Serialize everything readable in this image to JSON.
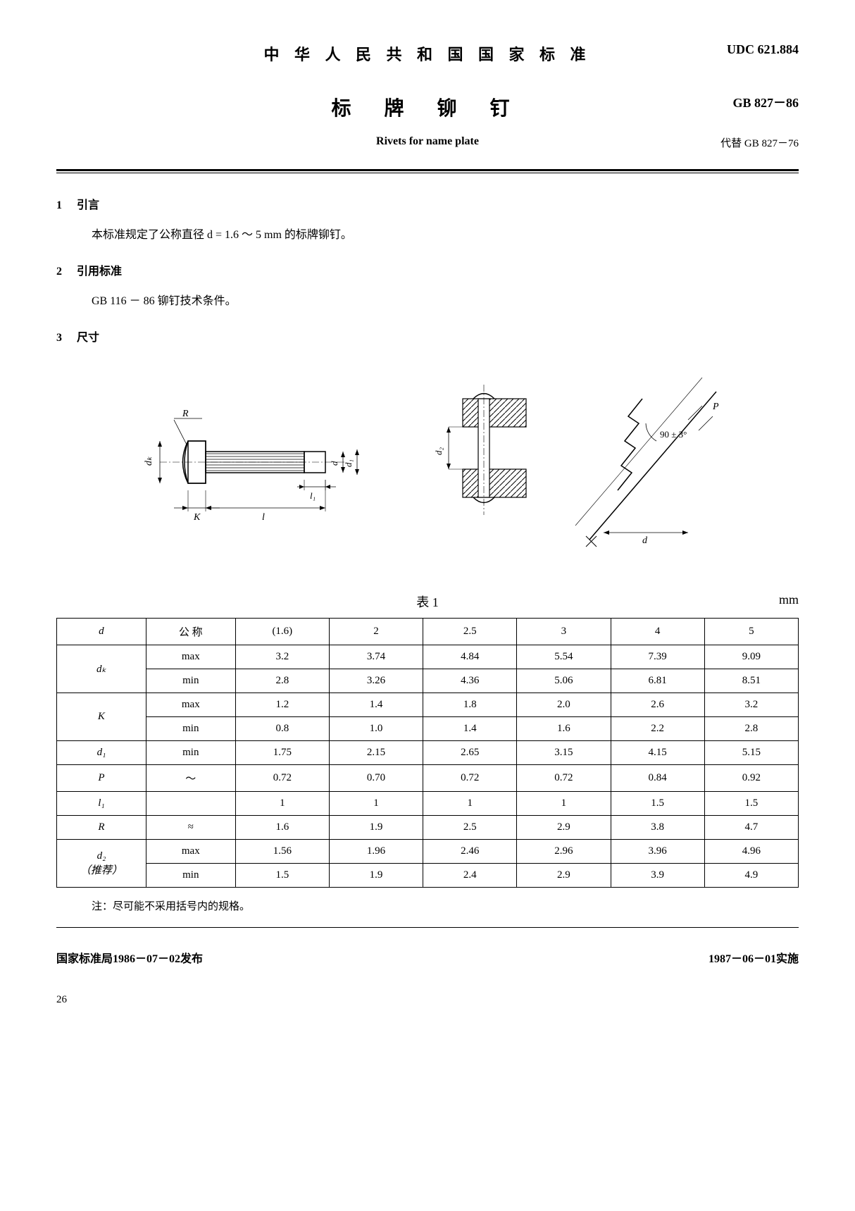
{
  "header": {
    "title": "中 华 人 民 共 和 国 国 家 标 准",
    "udc": "UDC 621.884",
    "subtitle": "标  牌  铆  钉",
    "gb_code": "GB 827－86",
    "english": "Rivets for name plate",
    "replace": "代替 GB 827－76"
  },
  "sections": {
    "s1_num": "1",
    "s1_title": "引言",
    "s1_text": "本标准规定了公称直径 d = 1.6 ～ 5 mm 的标牌铆钉。",
    "s2_num": "2",
    "s2_title": "引用标准",
    "s2_text": "GB 116 － 86 铆钉技术条件。",
    "s3_num": "3",
    "s3_title": "尺寸"
  },
  "diagram": {
    "labels": {
      "R": "R",
      "dk": "dₖ",
      "K": "K",
      "l": "l",
      "l1": "l₁",
      "d": "d",
      "d1": "d₁",
      "d2": "d₂",
      "angle": "90 ± 3°",
      "P": "P"
    }
  },
  "table": {
    "title": "表 1",
    "unit": "mm",
    "cols": [
      "(1.6)",
      "2",
      "2.5",
      "3",
      "4",
      "5"
    ],
    "rows": [
      {
        "param": "d",
        "type": "公 称",
        "vals": [
          "(1.6)",
          "2",
          "2.5",
          "3",
          "4",
          "5"
        ]
      },
      {
        "param": "dₖ",
        "type1": "max",
        "type2": "min",
        "vals1": [
          "3.2",
          "3.74",
          "4.84",
          "5.54",
          "7.39",
          "9.09"
        ],
        "vals2": [
          "2.8",
          "3.26",
          "4.36",
          "5.06",
          "6.81",
          "8.51"
        ]
      },
      {
        "param": "K",
        "type1": "max",
        "type2": "min",
        "vals1": [
          "1.2",
          "1.4",
          "1.8",
          "2.0",
          "2.6",
          "3.2"
        ],
        "vals2": [
          "0.8",
          "1.0",
          "1.4",
          "1.6",
          "2.2",
          "2.8"
        ]
      },
      {
        "param": "d₁",
        "type": "min",
        "vals": [
          "1.75",
          "2.15",
          "2.65",
          "3.15",
          "4.15",
          "5.15"
        ]
      },
      {
        "param": "P",
        "type": "～",
        "vals": [
          "0.72",
          "0.70",
          "0.72",
          "0.72",
          "0.84",
          "0.92"
        ]
      },
      {
        "param": "l₁",
        "type": "",
        "vals": [
          "1",
          "1",
          "1",
          "1",
          "1.5",
          "1.5"
        ]
      },
      {
        "param": "R",
        "type": "≈",
        "vals": [
          "1.6",
          "1.9",
          "2.5",
          "2.9",
          "3.8",
          "4.7"
        ]
      },
      {
        "param": "d₂\n（推荐）",
        "type1": "max",
        "type2": "min",
        "vals1": [
          "1.56",
          "1.96",
          "2.46",
          "2.96",
          "3.96",
          "4.96"
        ],
        "vals2": [
          "1.5",
          "1.9",
          "2.4",
          "2.9",
          "3.9",
          "4.9"
        ]
      }
    ],
    "note": "注：尽可能不采用括号内的规格。"
  },
  "footer": {
    "left": "国家标准局1986－07－02发布",
    "right": "1987－06－01实施",
    "page": "26"
  }
}
